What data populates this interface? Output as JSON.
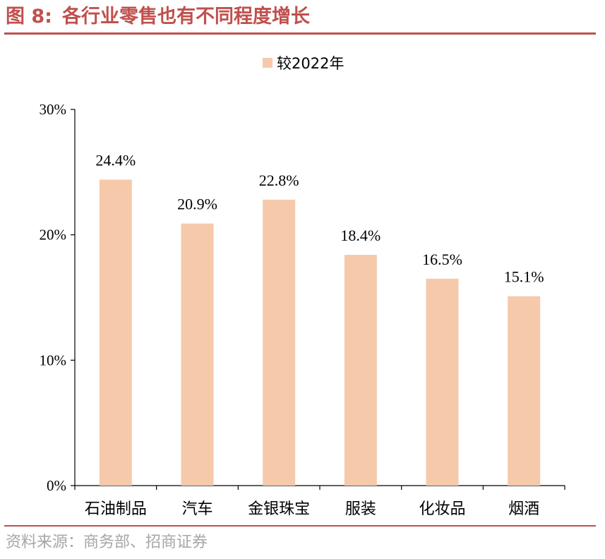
{
  "header": {
    "figure_number": "图 8:",
    "title": "各行业零售也有不同程度增长"
  },
  "footer": {
    "source": "资料来源：商务部、招商证券"
  },
  "colors": {
    "accent": "#c0504d",
    "bar": "#f6c9ab",
    "source_text": "#a6a6a6"
  },
  "chart_data": {
    "type": "bar",
    "categories": [
      "石油制品",
      "汽车",
      "金银珠宝",
      "服装",
      "化妆品",
      "烟酒"
    ],
    "series": [
      {
        "name": "较2022年",
        "values": [
          24.4,
          20.9,
          22.8,
          18.4,
          16.5,
          15.1
        ]
      }
    ],
    "data_labels": [
      "24.4%",
      "20.9%",
      "22.8%",
      "18.4%",
      "16.5%",
      "15.1%"
    ],
    "y_ticks": [
      0,
      10,
      20,
      30
    ],
    "y_tick_labels": [
      "0%",
      "10%",
      "20%",
      "30%"
    ],
    "ylim": [
      0,
      30
    ],
    "legend_position": "top-center",
    "grid": false
  }
}
